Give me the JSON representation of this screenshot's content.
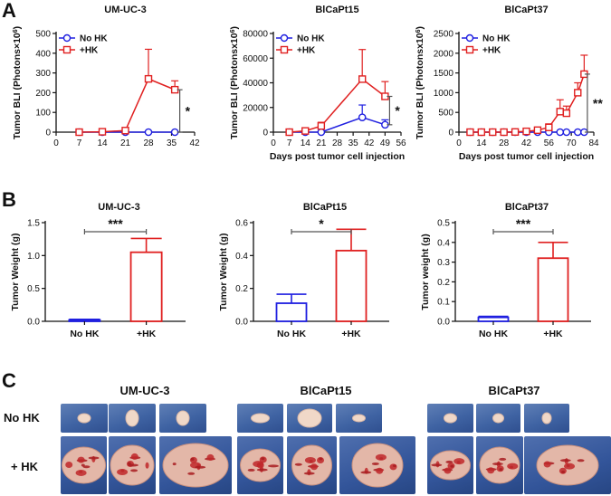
{
  "panels": {
    "A": "A",
    "B": "B",
    "C": "C"
  },
  "colors": {
    "no_hk": "#1f1fe0",
    "hk": "#e02020",
    "axis": "#111111",
    "sig": "#555555"
  },
  "chart_data": [
    {
      "id": "a1",
      "type": "line",
      "title": "UM-UC-3",
      "ylabel": "Tumor BLI (Photons×10^6)",
      "ylabel_main": "Tumor BLI (Photons×10",
      "ylabel_sup": "6",
      "ylabel_close": ")",
      "xlabel": "",
      "x_ticks": [
        0,
        7,
        14,
        21,
        28,
        35,
        42
      ],
      "y_ticks": [
        0,
        100,
        200,
        300,
        400,
        500
      ],
      "xlim": [
        0,
        42
      ],
      "ylim": [
        0,
        500
      ],
      "series": [
        {
          "name": "No HK",
          "x": [
            7,
            14,
            21,
            28,
            36
          ],
          "y": [
            0,
            0,
            0,
            0,
            0
          ],
          "err": [
            0,
            0,
            0,
            0,
            0
          ]
        },
        {
          "name": "+HK",
          "x": [
            7,
            14,
            21,
            28,
            36
          ],
          "y": [
            0,
            2,
            8,
            270,
            215
          ],
          "err": [
            0,
            0,
            3,
            150,
            45
          ]
        }
      ],
      "significance": {
        "label": "*",
        "x": 37.5
      }
    },
    {
      "id": "a2",
      "type": "line",
      "title": "BlCaPt15",
      "ylabel": "Tumor BLI (Photonsx10^6)",
      "ylabel_main": "Tumor BLI (Photonsx10",
      "ylabel_sup": "6",
      "ylabel_close": ")",
      "xlabel": "Days post tumor cell injection",
      "x_ticks": [
        0,
        7,
        14,
        21,
        28,
        35,
        42,
        49,
        56
      ],
      "y_ticks": [
        0,
        20000,
        40000,
        60000,
        80000
      ],
      "xlim": [
        0,
        56
      ],
      "ylim": [
        0,
        80000
      ],
      "series": [
        {
          "name": "No HK",
          "x": [
            7,
            14,
            21,
            39,
            49
          ],
          "y": [
            0,
            0,
            0,
            12000,
            6000
          ],
          "err": [
            0,
            0,
            0,
            10000,
            4000
          ]
        },
        {
          "name": "+HK",
          "x": [
            7,
            14,
            21,
            39,
            49
          ],
          "y": [
            0,
            1000,
            5000,
            43000,
            29000
          ],
          "err": [
            0,
            1000,
            3000,
            24000,
            12000
          ]
        }
      ],
      "significance": {
        "label": "*",
        "x": 51
      }
    },
    {
      "id": "a3",
      "type": "line",
      "title": "BlCaPt37",
      "ylabel": "Tumor BLI (Photonsx10^6)",
      "ylabel_main": "Tumor BLI (Photonsx10",
      "ylabel_sup": "6",
      "ylabel_close": ")",
      "xlabel": "Days post tumor cell injection",
      "x_ticks": [
        0,
        14,
        28,
        42,
        56,
        70,
        84
      ],
      "y_ticks": [
        0,
        500,
        1000,
        1500,
        2000,
        2500
      ],
      "xlim": [
        0,
        84
      ],
      "ylim": [
        0,
        2500
      ],
      "series": [
        {
          "name": "No HK",
          "x": [
            7,
            14,
            21,
            28,
            35,
            42,
            49,
            56,
            63,
            67,
            74,
            78
          ],
          "y": [
            0,
            0,
            0,
            0,
            0,
            0,
            0,
            0,
            0,
            0,
            0,
            0
          ],
          "err": [
            0,
            0,
            0,
            0,
            0,
            0,
            0,
            0,
            0,
            0,
            0,
            0
          ]
        },
        {
          "name": "+HK",
          "x": [
            7,
            14,
            21,
            28,
            35,
            42,
            49,
            56,
            63,
            67,
            74,
            78
          ],
          "y": [
            0,
            0,
            0,
            0,
            5,
            20,
            50,
            120,
            520,
            480,
            1000,
            1470
          ],
          "err": [
            0,
            0,
            0,
            0,
            5,
            15,
            40,
            90,
            300,
            180,
            250,
            480
          ]
        }
      ],
      "significance": {
        "label": "**",
        "x": 80
      }
    },
    {
      "id": "b1",
      "type": "bar",
      "title": "UM-UC-3",
      "ylabel": "Tumor Weight (g)",
      "categories": [
        "No HK",
        "+HK"
      ],
      "values": [
        0.02,
        1.05
      ],
      "err": [
        0.01,
        0.21
      ],
      "y_ticks": [
        "0.0",
        "0.5",
        "1.0",
        "1.5"
      ],
      "ylim": [
        0,
        1.5
      ],
      "significance": "***"
    },
    {
      "id": "b2",
      "type": "bar",
      "title": "BlCaPt15",
      "ylabel": "Tumor Weight (g)",
      "categories": [
        "No HK",
        "+HK"
      ],
      "values": [
        0.11,
        0.43
      ],
      "err": [
        0.055,
        0.13
      ],
      "y_ticks": [
        "0.0",
        "0.2",
        "0.4",
        "0.6"
      ],
      "ylim": [
        0,
        0.6
      ],
      "significance": "*"
    },
    {
      "id": "b3",
      "type": "bar",
      "title": "BlCaPt37",
      "ylabel": "Tumor weight (g)",
      "categories": [
        "No HK",
        "+HK"
      ],
      "values": [
        0.02,
        0.32
      ],
      "err": [
        0.005,
        0.08
      ],
      "y_ticks": [
        "0.0",
        "0.1",
        "0.2",
        "0.3",
        "0.4",
        "0.5"
      ],
      "ylim": [
        0,
        0.5
      ],
      "significance": "***"
    }
  ],
  "photos": {
    "groups": [
      "UM-UC-3",
      "BlCaPt15",
      "BlCaPt37"
    ],
    "row_labels": [
      "No HK",
      "+ HK"
    ]
  }
}
